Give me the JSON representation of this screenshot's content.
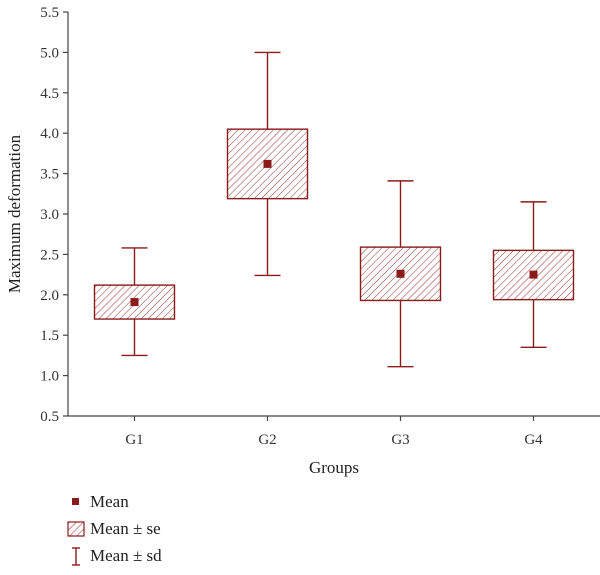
{
  "colors": {
    "accent": "#8b1a1a",
    "axis": "#444444",
    "text": "#222222"
  },
  "chart_data": {
    "type": "box",
    "xlabel": "Groups",
    "ylabel": "Maximum deformation",
    "ylim": [
      0.5,
      5.5
    ],
    "yticks": [
      "0.5",
      "1.0",
      "1.5",
      "2.0",
      "2.5",
      "3.0",
      "3.5",
      "4.0",
      "4.5",
      "5.0",
      "5.5"
    ],
    "categories": [
      "G1",
      "G2",
      "G3",
      "G4"
    ],
    "mean": [
      1.91,
      3.62,
      2.26,
      2.25
    ],
    "se_low": [
      1.7,
      3.19,
      1.93,
      1.94
    ],
    "se_high": [
      2.12,
      4.05,
      2.59,
      2.55
    ],
    "sd_low": [
      1.25,
      2.24,
      1.11,
      1.35
    ],
    "sd_high": [
      2.58,
      5.0,
      3.41,
      3.15
    ],
    "grid": false
  },
  "legend": {
    "mean_label": "Mean",
    "se_label": "Mean ± se",
    "sd_label": "Mean ± sd"
  }
}
